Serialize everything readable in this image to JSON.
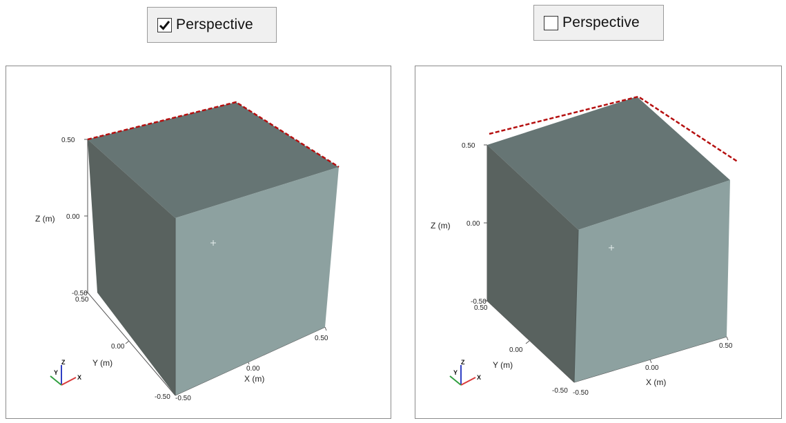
{
  "left": {
    "checkbox": {
      "label": "Perspective",
      "checked": true
    },
    "axes": {
      "z_label": "Z (m)",
      "y_label": "Y (m)",
      "x_label": "X (m)",
      "z_ticks": [
        "0.50",
        "0.00",
        "-0.50"
      ],
      "y_ticks": [
        "0.50",
        "0.00",
        "-0.50"
      ],
      "x_ticks": [
        "0.50",
        "0.00",
        "-0.50"
      ]
    },
    "triad": {
      "z": "Z",
      "y": "Y",
      "x": "X"
    }
  },
  "right": {
    "checkbox": {
      "label": "Perspective",
      "checked": false
    },
    "axes": {
      "z_label": "Z (m)",
      "y_label": "Y (m)",
      "x_label": "X (m)",
      "z_ticks": [
        "0.50",
        "0.00",
        "-0.50"
      ],
      "y_ticks": [
        "0.50",
        "0.00",
        "-0.50"
      ],
      "x_ticks": [
        "0.50",
        "0.00",
        "-0.50"
      ]
    },
    "triad": {
      "z": "Z",
      "y": "Y",
      "x": "X"
    }
  },
  "colors": {
    "top_face": "#667574",
    "left_face": "#59625f",
    "right_face": "#8da1a0",
    "highlight_line": "#b50f0f",
    "triad_x": "#d93a3a",
    "triad_y": "#2e9e3e",
    "triad_z": "#2f3fc4"
  }
}
